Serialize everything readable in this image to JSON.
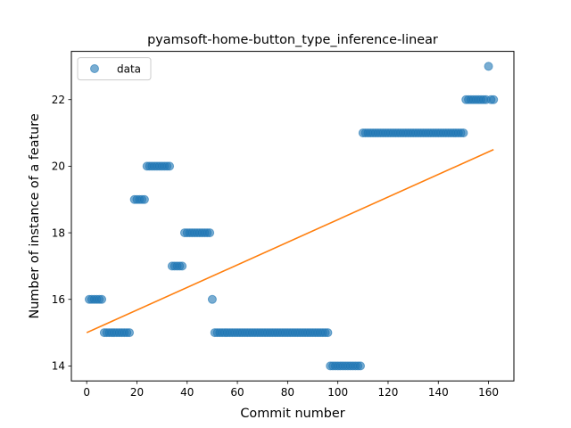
{
  "chart_data": {
    "type": "scatter",
    "title": "pyamsoft-home-button_type_inference-linear",
    "xlabel": "Commit number",
    "ylabel": "Number of instance of a feature",
    "xlim": [
      -6.1,
      170.1
    ],
    "ylim": [
      13.55,
      23.45
    ],
    "xticks": [
      0,
      20,
      40,
      60,
      80,
      100,
      120,
      140,
      160
    ],
    "yticks": [
      14,
      16,
      18,
      20,
      22
    ],
    "grid": false,
    "legend": {
      "placement": "top-left",
      "entries": [
        "data"
      ]
    },
    "colors": {
      "points": "#1f77b4",
      "fit": "#ff7f0e"
    },
    "series": [
      {
        "name": "data",
        "segments": [
          {
            "from": 1,
            "to": 7,
            "y": 16
          },
          {
            "from": 7,
            "to": 18,
            "y": 15
          },
          {
            "from": 19,
            "to": 24,
            "y": 19
          },
          {
            "from": 24,
            "to": 34,
            "y": 20
          },
          {
            "from": 34,
            "to": 39,
            "y": 17
          },
          {
            "from": 39,
            "to": 50,
            "y": 18
          },
          {
            "from": 50,
            "to": 51,
            "y": 16
          },
          {
            "from": 51,
            "to": 97,
            "y": 15
          },
          {
            "from": 97,
            "to": 110,
            "y": 14
          },
          {
            "from": 110,
            "to": 151,
            "y": 21
          },
          {
            "from": 151,
            "to": 160,
            "y": 22
          },
          {
            "from": 160,
            "to": 161,
            "y": 23
          },
          {
            "from": 161,
            "to": 163,
            "y": 22
          }
        ]
      }
    ],
    "fit_line": {
      "x": [
        0,
        162
      ],
      "y": [
        15.0,
        20.5
      ]
    }
  }
}
